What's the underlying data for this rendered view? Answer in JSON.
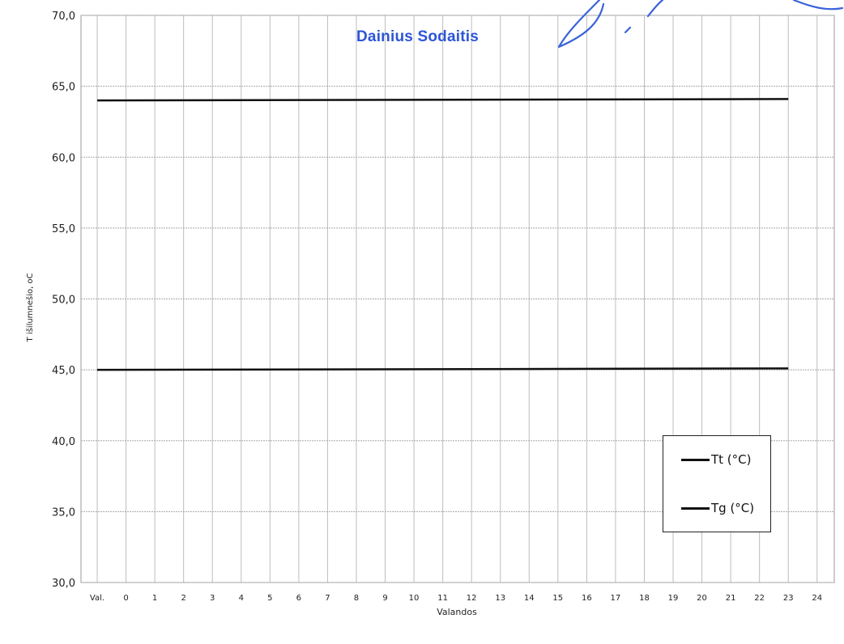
{
  "stamp": {
    "name": "Dainius Sodaitis"
  },
  "chart_data": {
    "type": "line",
    "title": "",
    "xlabel": "Valandos",
    "ylabel": "T išilumnešio, oC",
    "x_first_label": "Val.",
    "x": [
      0,
      1,
      2,
      3,
      4,
      5,
      6,
      7,
      8,
      9,
      10,
      11,
      12,
      13,
      14,
      15,
      16,
      17,
      18,
      19,
      20,
      21,
      22,
      23,
      24
    ],
    "ylim": [
      30,
      70
    ],
    "yticks": [
      "30,0",
      "35,0",
      "40,0",
      "45,0",
      "50,0",
      "55,0",
      "60,0",
      "65,0",
      "70,0"
    ],
    "grid": true,
    "legend_position": "bottom-right",
    "series": [
      {
        "name": "Tt (°C)",
        "color": "#111111",
        "x": [
          -1,
          23
        ],
        "values": [
          64.0,
          64.1
        ]
      },
      {
        "name": "Tg (°C)",
        "color": "#111111",
        "x": [
          -1,
          23
        ],
        "values": [
          45.0,
          45.1
        ]
      }
    ]
  }
}
